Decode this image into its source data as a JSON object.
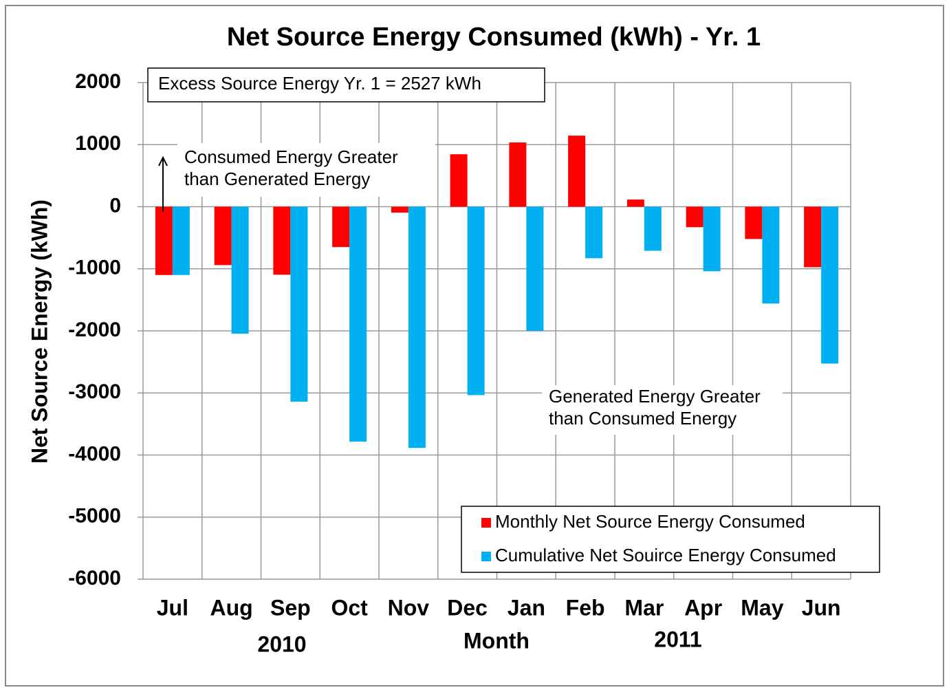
{
  "chart_data": {
    "type": "bar",
    "title": "Net Source Energy Consumed (kWh) - Yr. 1",
    "y_label": "Net Source Energy (kWh)",
    "x_label": "Month",
    "year_labels": [
      "2010",
      "2011"
    ],
    "annotations": {
      "excess": "Excess Source Energy Yr. 1 = 2527 kWh",
      "consumed": [
        "Consumed Energy Greater",
        "than Generated Energy"
      ],
      "generated": [
        "Generated Energy Greater",
        "than Consumed Energy"
      ]
    },
    "categories": [
      "Jul",
      "Aug",
      "Sep",
      "Oct",
      "Nov",
      "Dec",
      "Jan",
      "Feb",
      "Mar",
      "Apr",
      "May",
      "Jun"
    ],
    "series": [
      {
        "name": "Monthly Net Source Energy Consumed",
        "color": "#ff0000",
        "values": [
          -1100,
          -940,
          -1095,
          -650,
          -95,
          845,
          1035,
          1145,
          115,
          -330,
          -520,
          -975
        ]
      },
      {
        "name": "Cumulative Net Souirce Energy Consumed",
        "color": "#00b0f0",
        "values": [
          -1100,
          -2045,
          -3140,
          -3785,
          -3885,
          -3035,
          -2000,
          -830,
          -710,
          -1040,
          -1560,
          -2527
        ]
      }
    ],
    "ylim": [
      -6000,
      2000
    ],
    "yticks": [
      2000,
      1000,
      0,
      -1000,
      -2000,
      -3000,
      -4000,
      -5000,
      -6000
    ],
    "grid": true,
    "legend": "lower right"
  }
}
